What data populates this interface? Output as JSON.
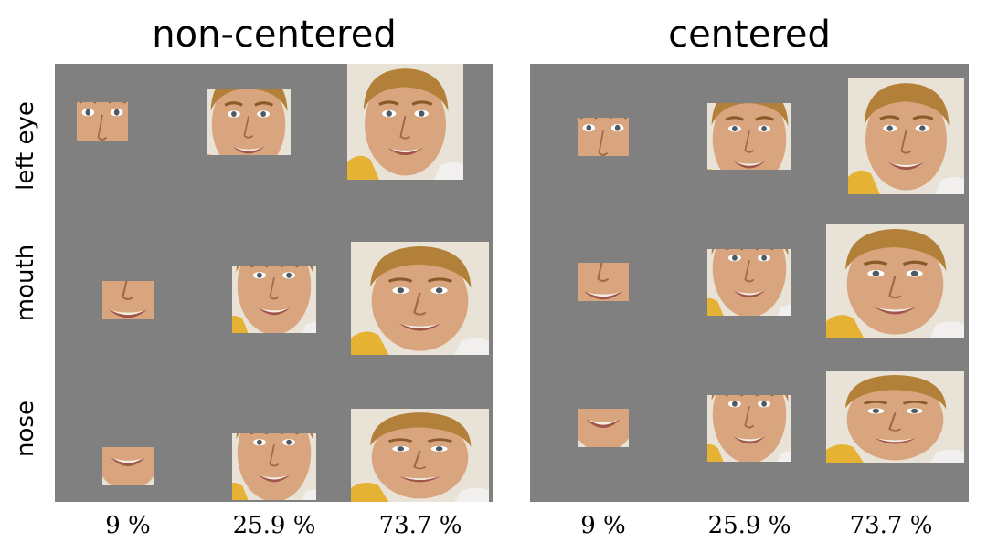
{
  "titles": {
    "left": "non-centered",
    "right": "centered"
  },
  "row_labels": [
    "left eye",
    "mouth",
    "nose"
  ],
  "column_labels": [
    "9 %",
    "25.9 %",
    "73.7 %"
  ],
  "colors": {
    "background_panel": "#808080",
    "skin": "#d9a57e",
    "hair": "#b3803a",
    "eye": "#4c5a66",
    "teeth": "#f4efe4",
    "lips": "#a0544a",
    "shirt_yellow": "#e5b234"
  },
  "images": [
    {
      "panel": "non-centered",
      "row": "left eye",
      "column": "9 %",
      "depicts": "crop-eye-region"
    },
    {
      "panel": "non-centered",
      "row": "left eye",
      "column": "25.9 %",
      "depicts": "crop-eyes-nose"
    },
    {
      "panel": "non-centered",
      "row": "left eye",
      "column": "73.7 %",
      "depicts": "full-face"
    },
    {
      "panel": "non-centered",
      "row": "mouth",
      "column": "9 %",
      "depicts": "crop-nose"
    },
    {
      "panel": "non-centered",
      "row": "mouth",
      "column": "25.9 %",
      "depicts": "crop-nose-mouth"
    },
    {
      "panel": "non-centered",
      "row": "mouth",
      "column": "73.7 %",
      "depicts": "full-face"
    },
    {
      "panel": "non-centered",
      "row": "nose",
      "column": "9 %",
      "depicts": "crop-mouth"
    },
    {
      "panel": "non-centered",
      "row": "nose",
      "column": "25.9 %",
      "depicts": "crop-nose-mouth"
    },
    {
      "panel": "non-centered",
      "row": "nose",
      "column": "73.7 %",
      "depicts": "full-face"
    },
    {
      "panel": "centered",
      "row": "left eye",
      "column": "9 %",
      "depicts": "crop-eye-region"
    },
    {
      "panel": "centered",
      "row": "left eye",
      "column": "25.9 %",
      "depicts": "crop-eyes-nose"
    },
    {
      "panel": "centered",
      "row": "left eye",
      "column": "73.7 %",
      "depicts": "full-face"
    },
    {
      "panel": "centered",
      "row": "mouth",
      "column": "9 %",
      "depicts": "crop-nose"
    },
    {
      "panel": "centered",
      "row": "mouth",
      "column": "25.9 %",
      "depicts": "crop-nose-mouth"
    },
    {
      "panel": "centered",
      "row": "mouth",
      "column": "73.7 %",
      "depicts": "full-face"
    },
    {
      "panel": "centered",
      "row": "nose",
      "column": "9 %",
      "depicts": "crop-mouth"
    },
    {
      "panel": "centered",
      "row": "nose",
      "column": "25.9 %",
      "depicts": "crop-nose-mouth"
    },
    {
      "panel": "centered",
      "row": "nose",
      "column": "73.7 %",
      "depicts": "full-face"
    }
  ]
}
